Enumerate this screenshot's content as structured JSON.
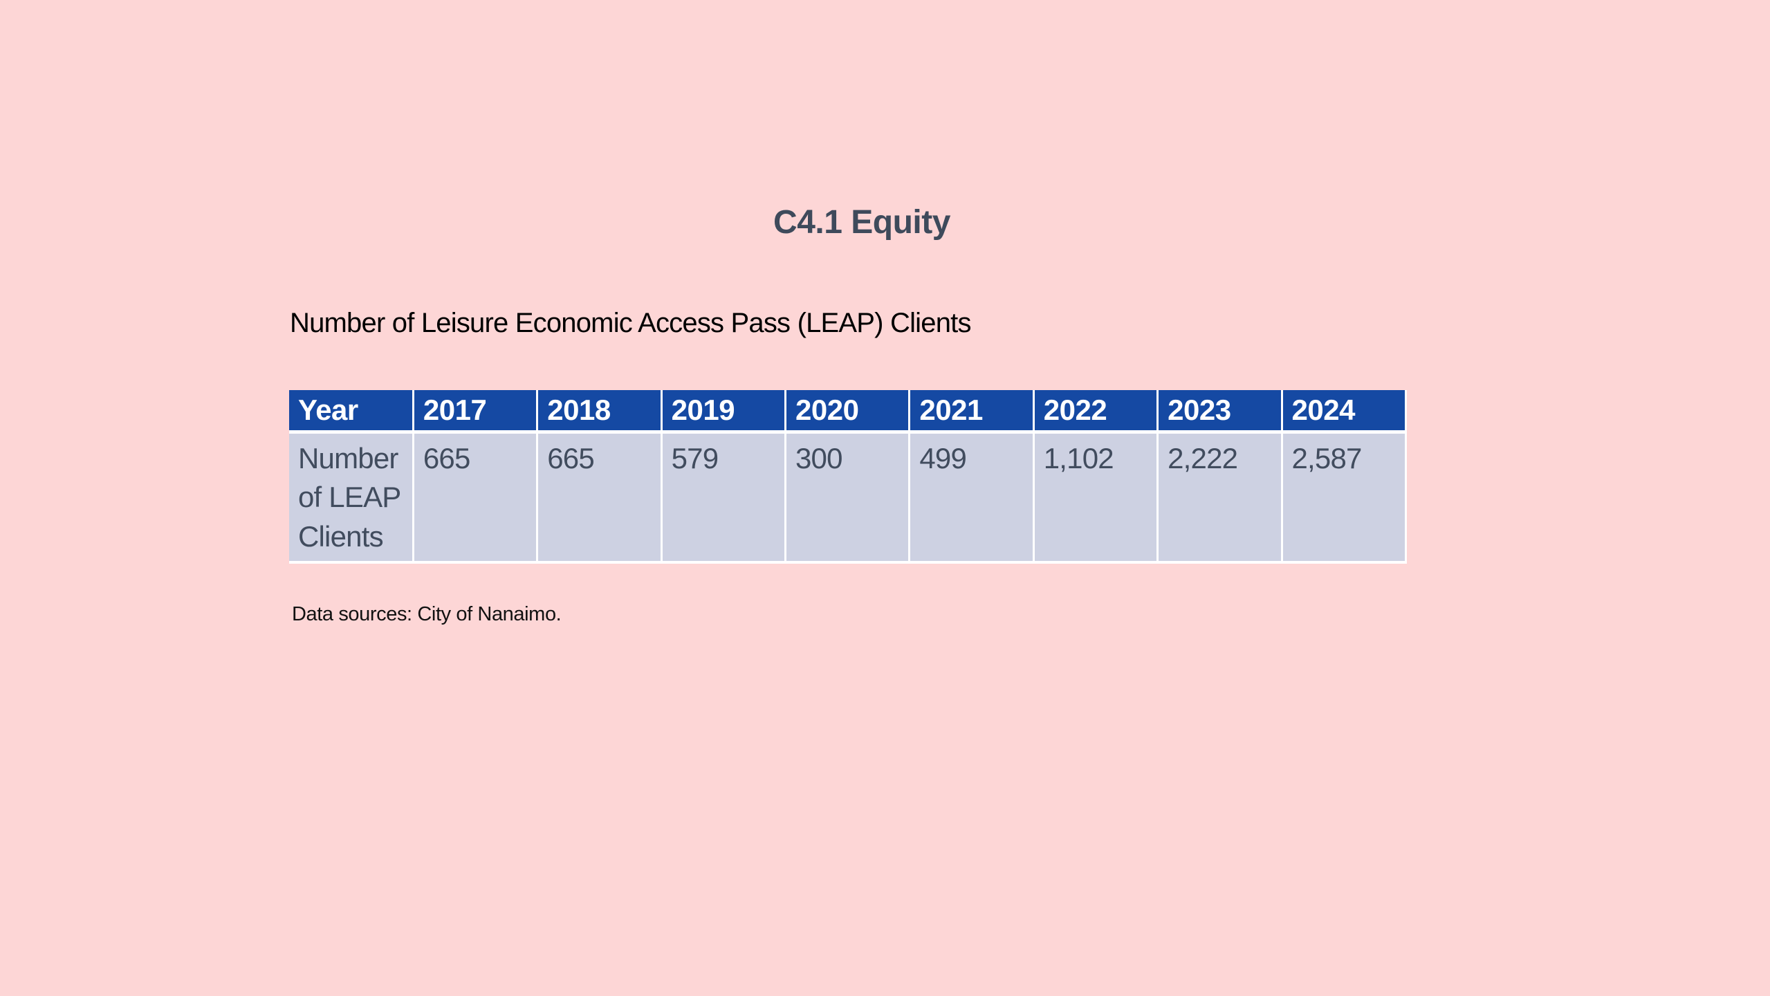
{
  "slide": {
    "title": "C4.1 Equity",
    "subtitle": "Number of Leisure Economic Access Pass (LEAP) Clients",
    "footnote": "Data sources: City of Nanaimo."
  },
  "table": {
    "header": [
      "Year",
      "2017",
      "2018",
      "2019",
      "2020",
      "2021",
      "2022",
      "2023",
      "2024"
    ],
    "rows": [
      {
        "label": "Number of LEAP Clients",
        "values": [
          "665",
          "665",
          "579",
          "300",
          "499",
          "1,102",
          "2,222",
          "2,587"
        ]
      }
    ]
  },
  "chart_data": {
    "type": "table",
    "title": "Number of Leisure Economic Access Pass (LEAP) Clients",
    "categories": [
      "2017",
      "2018",
      "2019",
      "2020",
      "2021",
      "2022",
      "2023",
      "2024"
    ],
    "series": [
      {
        "name": "Number of LEAP Clients",
        "values": [
          665,
          665,
          579,
          300,
          499,
          1102,
          2222,
          2587
        ]
      }
    ],
    "source": "City of Nanaimo"
  },
  "colors": {
    "background": "#fdd6d6",
    "header_bg": "#1549a3",
    "row_bg": "#cdd1e2",
    "title_text": "#3e4a5b",
    "header_text": "#ffffff",
    "body_text": "#414c5e",
    "footnote_text": "#111111",
    "border": "#ffffff"
  }
}
